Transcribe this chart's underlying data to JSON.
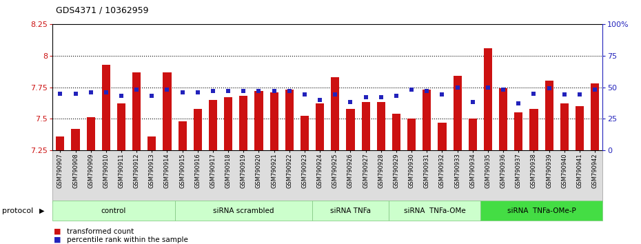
{
  "title": "GDS4371 / 10362959",
  "samples": [
    "GSM790907",
    "GSM790908",
    "GSM790909",
    "GSM790910",
    "GSM790911",
    "GSM790912",
    "GSM790913",
    "GSM790914",
    "GSM790915",
    "GSM790916",
    "GSM790917",
    "GSM790918",
    "GSM790919",
    "GSM790920",
    "GSM790921",
    "GSM790922",
    "GSM790923",
    "GSM790924",
    "GSM790925",
    "GSM790926",
    "GSM790927",
    "GSM790928",
    "GSM790929",
    "GSM790930",
    "GSM790931",
    "GSM790932",
    "GSM790933",
    "GSM790934",
    "GSM790935",
    "GSM790936",
    "GSM790937",
    "GSM790938",
    "GSM790939",
    "GSM790940",
    "GSM790941",
    "GSM790942"
  ],
  "transformed_count": [
    7.36,
    7.42,
    7.51,
    7.93,
    7.62,
    7.87,
    7.36,
    7.87,
    7.48,
    7.58,
    7.65,
    7.67,
    7.68,
    7.72,
    7.71,
    7.73,
    7.52,
    7.62,
    7.83,
    7.58,
    7.63,
    7.63,
    7.54,
    7.5,
    7.73,
    7.47,
    7.84,
    7.5,
    8.06,
    7.74,
    7.55,
    7.58,
    7.8,
    7.62,
    7.6,
    7.78
  ],
  "percentile_rank": [
    45,
    45,
    46,
    46,
    43,
    48,
    43,
    48,
    46,
    46,
    47,
    47,
    47,
    47,
    47,
    47,
    44,
    40,
    44,
    38,
    42,
    42,
    43,
    48,
    47,
    44,
    50,
    38,
    50,
    48,
    37,
    45,
    49,
    44,
    44,
    48
  ],
  "groups": [
    {
      "label": "control",
      "start": 0,
      "end": 8,
      "dark": false
    },
    {
      "label": "siRNA scrambled",
      "start": 8,
      "end": 17,
      "dark": false
    },
    {
      "label": "siRNA TNFa",
      "start": 17,
      "end": 22,
      "dark": false
    },
    {
      "label": "siRNA  TNFa-OMe",
      "start": 22,
      "end": 28,
      "dark": false
    },
    {
      "label": "siRNA  TNFa-OMe-P",
      "start": 28,
      "end": 36,
      "dark": true
    }
  ],
  "y_min": 7.25,
  "y_max": 8.25,
  "y_ticks": [
    7.25,
    7.5,
    7.75,
    8.0,
    8.25
  ],
  "y_tick_labels": [
    "7.25",
    "7.5",
    "7.75",
    "8",
    "8.25"
  ],
  "y2_ticks": [
    0,
    25,
    50,
    75,
    100
  ],
  "y2_labels": [
    "0",
    "25",
    "50",
    "75",
    "100%"
  ],
  "bar_color": "#cc1111",
  "dot_color": "#2222bb",
  "bar_bottom": 7.25,
  "grid_at": [
    7.5,
    7.75,
    8.0
  ],
  "group_light_color": "#ccffcc",
  "group_dark_color": "#44dd44",
  "group_border_color": "#88cc88",
  "legend_items": [
    {
      "label": "transformed count",
      "color": "#cc1111"
    },
    {
      "label": "percentile rank within the sample",
      "color": "#2222bb"
    }
  ]
}
